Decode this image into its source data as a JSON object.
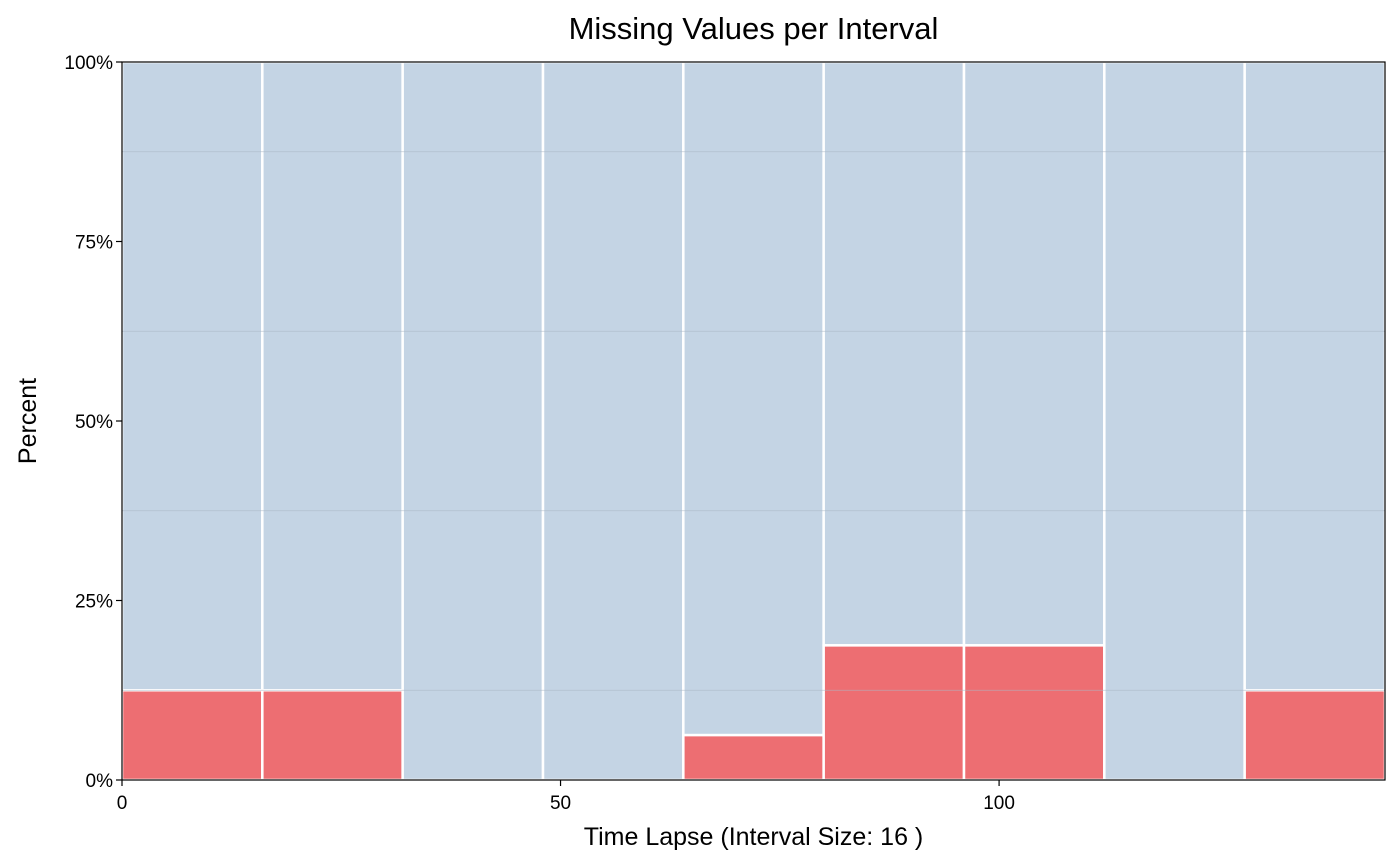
{
  "chart_data": {
    "type": "bar",
    "title": "Missing Values per Interval",
    "xlabel": "Time Lapse (Interval Size: 16 )",
    "ylabel": "Percent",
    "interval_size": 16,
    "bins": [
      {
        "start": 0,
        "end": 16,
        "missing_percent": 12.5
      },
      {
        "start": 16,
        "end": 32,
        "missing_percent": 12.5
      },
      {
        "start": 32,
        "end": 48,
        "missing_percent": 0
      },
      {
        "start": 48,
        "end": 64,
        "missing_percent": 0
      },
      {
        "start": 64,
        "end": 80,
        "missing_percent": 6.25
      },
      {
        "start": 80,
        "end": 96,
        "missing_percent": 18.75
      },
      {
        "start": 96,
        "end": 112,
        "missing_percent": 18.75
      },
      {
        "start": 112,
        "end": 128,
        "missing_percent": 0
      },
      {
        "start": 128,
        "end": 144,
        "missing_percent": 12.5
      }
    ],
    "xlim": [
      0,
      144
    ],
    "ylim": [
      0,
      100
    ],
    "x_ticks": [
      0,
      50,
      100
    ],
    "x_tick_labels": [
      "0",
      "50",
      "100"
    ],
    "y_ticks": [
      0,
      25,
      50,
      75,
      100
    ],
    "y_tick_labels": [
      "0%",
      "25%",
      "50%",
      "75%",
      "100%"
    ],
    "minor_gridlines_y": [
      12.5,
      37.5,
      62.5,
      87.5
    ],
    "grid": true,
    "colors": {
      "missing": "#ED6E72",
      "present": "#C4D4E4",
      "bar_edge": "#FFFFFF",
      "gridline": "#AAB8C6"
    }
  }
}
